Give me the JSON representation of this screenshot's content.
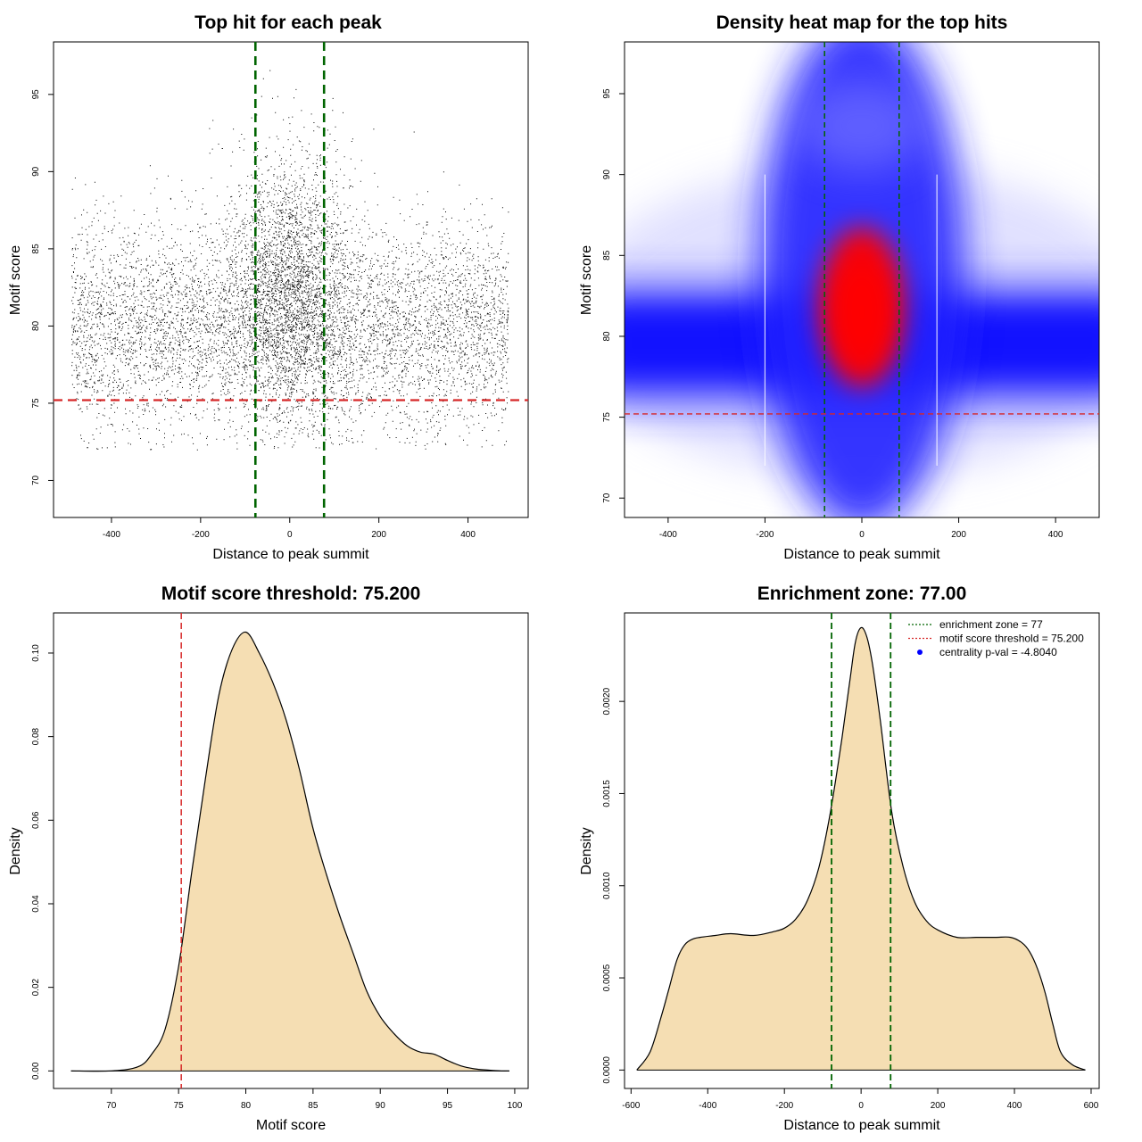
{
  "chart_data": [
    {
      "type": "scatter",
      "title": "Top hit for each peak",
      "xlabel": "Distance to peak summit",
      "ylabel": "Motif score",
      "xlim": [
        -530,
        535
      ],
      "ylim": [
        67.6,
        98.4
      ],
      "xticks": [
        -400,
        -200,
        0,
        200,
        400
      ],
      "yticks": [
        70,
        75,
        80,
        85,
        90,
        95
      ],
      "point_color": "#000000",
      "threshold_line": {
        "y": 75.2,
        "color": "#d62728",
        "style": "dashed"
      },
      "enrichment_lines": {
        "x": [
          -77,
          77
        ],
        "color": "#006400",
        "style": "dashed"
      },
      "points_summary": "approx. 9000 points; x uniform in [-490, 490] with a central cluster near 0; y centred near 80 (sd ~3.5), central points higher (mean ~83)"
    },
    {
      "type": "heatmap",
      "title": "Density heat map for the top hits",
      "xlabel": "Distance to peak summit",
      "ylabel": "Motif score",
      "xlim": [
        -490,
        490
      ],
      "ylim": [
        68.8,
        98.2
      ],
      "xticks": [
        -400,
        -200,
        0,
        200,
        400
      ],
      "yticks": [
        70,
        75,
        80,
        85,
        90,
        95
      ],
      "colors": [
        "#ffffff",
        "#0000ff",
        "#ff0000"
      ],
      "threshold_line": {
        "y": 75.2,
        "color": "#d62728",
        "style": "dashed"
      },
      "enrichment_lines": {
        "x": [
          -77,
          77
        ],
        "color": "#006400",
        "style": "dashed"
      },
      "density_summary": "broad blue band at y~79.5 across all x; red core centred at x~0, y~82"
    },
    {
      "type": "area",
      "title": "Motif score threshold: 75.200",
      "xlabel": "Motif score",
      "ylabel": "Density",
      "xlim": [
        65.7,
        101.0
      ],
      "ylim": [
        -0.0042,
        0.1096
      ],
      "xticks": [
        70,
        75,
        80,
        85,
        90,
        95,
        100
      ],
      "yticks": [
        "0.00",
        "0.02",
        "0.04",
        "0.06",
        "0.08",
        "0.10"
      ],
      "fill_color": "#f5deb3",
      "threshold_line": {
        "x": 75.2,
        "color": "#d62728",
        "style": "dashed"
      },
      "x": [
        67,
        70,
        72,
        73,
        74,
        75,
        76,
        77,
        78,
        79,
        80,
        81,
        82,
        83,
        84,
        85,
        86,
        87,
        88,
        89,
        90,
        91,
        92,
        93,
        94,
        95,
        96,
        97,
        98,
        99,
        99.6
      ],
      "y": [
        0.0,
        0.0,
        0.001,
        0.004,
        0.01,
        0.025,
        0.048,
        0.07,
        0.09,
        0.101,
        0.105,
        0.1,
        0.093,
        0.084,
        0.072,
        0.058,
        0.047,
        0.037,
        0.028,
        0.019,
        0.013,
        0.009,
        0.006,
        0.0045,
        0.004,
        0.0025,
        0.0012,
        0.0005,
        0.0002,
        0.0,
        0.0
      ]
    },
    {
      "type": "area",
      "title": "Enrichment zone: 77.00",
      "xlabel": "Distance to peak summit",
      "ylabel": "Density",
      "xlim": [
        -617,
        621
      ],
      "ylim": [
        -0.0001,
        0.00248
      ],
      "xticks": [
        -600,
        -400,
        -200,
        0,
        200,
        400,
        600
      ],
      "yticks": [
        "0.0000",
        "0.0005",
        "0.0010",
        "0.0015",
        "0.0020"
      ],
      "fill_color": "#f5deb3",
      "enrichment_lines": {
        "x": [
          -77,
          77
        ],
        "color": "#006400",
        "style": "dashed"
      },
      "x": [
        -585,
        -550,
        -520,
        -500,
        -480,
        -460,
        -440,
        -420,
        -380,
        -340,
        -280,
        -230,
        -200,
        -170,
        -140,
        -110,
        -80,
        -50,
        -30,
        -15,
        0,
        15,
        30,
        50,
        80,
        110,
        140,
        170,
        200,
        250,
        300,
        350,
        390,
        420,
        440,
        460,
        480,
        500,
        520,
        550,
        585
      ],
      "y": [
        0.0,
        0.0001,
        0.0003,
        0.00045,
        0.0006,
        0.00068,
        0.00071,
        0.00072,
        0.00073,
        0.00074,
        0.00073,
        0.00075,
        0.00077,
        0.00082,
        0.00092,
        0.0011,
        0.0014,
        0.0018,
        0.0021,
        0.00232,
        0.0024,
        0.00235,
        0.0022,
        0.0019,
        0.0014,
        0.0011,
        0.00091,
        0.00081,
        0.00076,
        0.00072,
        0.00072,
        0.00072,
        0.00072,
        0.00069,
        0.00064,
        0.00055,
        0.00042,
        0.00025,
        0.0001,
        3e-05,
        0.0
      ],
      "legend": {
        "position": "top-right",
        "entries": [
          {
            "label": "enrichment zone = 77",
            "color": "#006400",
            "marker": "dotted-line"
          },
          {
            "label": "motif score threshold = 75.200",
            "color": "#d62728",
            "marker": "dotted-line"
          },
          {
            "label": "centrality p-val = -4.8040",
            "color": "#0000ff",
            "marker": "point"
          }
        ]
      }
    }
  ]
}
